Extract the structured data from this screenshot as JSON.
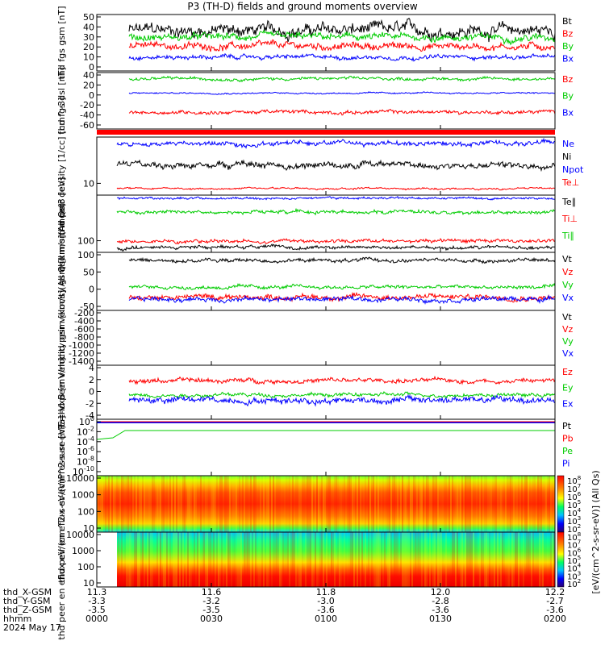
{
  "title": "P3 (TH-D) fields and ground moments overview",
  "date_label": "2024 May 17",
  "footer": {
    "row_labels": [
      "thd_X-GSM",
      "thd_Y-GSM",
      "thd_Z-GSM",
      "hhmm"
    ],
    "ticks": [
      {
        "x": "11.3",
        "y": "-3.3",
        "z": "-3.5",
        "t": "0000"
      },
      {
        "x": "11.6",
        "y": "-3.2",
        "z": "-3.5",
        "t": "0030"
      },
      {
        "x": "11.8",
        "y": "-3.0",
        "z": "-3.6",
        "t": "0100"
      },
      {
        "x": "12.0",
        "y": "-2.8",
        "z": "-3.6",
        "t": "0130"
      },
      {
        "x": "12.2",
        "y": "-2.7",
        "z": "-3.6",
        "t": "0200"
      }
    ]
  },
  "colorbar": {
    "label": "[eV/(cm^2-s-sr-eV)] (All Qs)",
    "ticks": [
      "10^8",
      "10^7",
      "10^6",
      "10^5",
      "10^4",
      "10^3",
      "10^2"
    ]
  },
  "chart_data": [
    {
      "type": "line",
      "ylabel": "thd fgs gsm [nT]",
      "yticks": [
        "50",
        "40",
        "30",
        "20",
        "10",
        "0"
      ],
      "ylim": [
        -5,
        52
      ],
      "series": [
        {
          "name": "Bt",
          "color": "#000000",
          "base": 36,
          "noise": 9
        },
        {
          "name": "Bz",
          "color": "#ff0000",
          "base": 20,
          "noise": 5
        },
        {
          "name": "By",
          "color": "#00cc00",
          "base": 29,
          "noise": 5
        },
        {
          "name": "Bx",
          "color": "#0000ff",
          "base": 9,
          "noise": 3
        }
      ]
    },
    {
      "type": "line",
      "ylabel": "thd fgs dsl [nT]",
      "yticks": [
        "40",
        "20",
        "0",
        "-20",
        "-40",
        "-60"
      ],
      "ylim": [
        -68,
        42
      ],
      "series": [
        {
          "name": "Bz",
          "color": "#ff0000",
          "base": -35,
          "noise": 5
        },
        {
          "name": "By",
          "color": "#00cc00",
          "base": 30,
          "noise": 4
        },
        {
          "name": "Bx",
          "color": "#0000ff",
          "base": 2,
          "noise": 2
        }
      ]
    },
    {
      "type": "line",
      "ylabel": "thd peir density [1/cc] [cm^-3]",
      "yticks": [
        "10"
      ],
      "ylim": [
        0,
        1
      ],
      "series": [
        {
          "name": "Ne",
          "color": "#0000ff"
        },
        {
          "name": "Ni",
          "color": "#000000"
        },
        {
          "name": "Npot",
          "color": "#0000ff"
        },
        {
          "name": "Te⊥",
          "color": "#ff0000"
        }
      ]
    },
    {
      "type": "line",
      "ylabel": "thd mom moat3 [eV]",
      "yticks": [
        "100"
      ],
      "ylim": [
        0,
        1
      ],
      "series": [
        {
          "name": "Te∥",
          "color": "#000000"
        },
        {
          "name": "Ti⊥",
          "color": "#ff0000"
        },
        {
          "name": "Ti∥",
          "color": "#00cc00"
        }
      ]
    },
    {
      "type": "line",
      "ylabel": "thd peir velocity gsm [km/s](All Qs)",
      "yticks": [
        "100",
        "50",
        "0",
        "-50"
      ],
      "ylim": [
        -80,
        100
      ],
      "series": [
        {
          "name": "Vt",
          "color": "#000000",
          "base": 75,
          "noise": 8
        },
        {
          "name": "Vz",
          "color": "#ff0000",
          "base": -38,
          "noise": 12
        },
        {
          "name": "Vy",
          "color": "#00cc00",
          "base": -8,
          "noise": 8
        },
        {
          "name": "Vx",
          "color": "#0000ff",
          "base": -45,
          "noise": 10
        }
      ]
    },
    {
      "type": "line",
      "ylabel": "thd peer velocity gsm [km/s](All Qs)",
      "yticks": [
        "-200",
        "-400",
        "-600",
        "-800",
        "-1000",
        "-1200",
        "-1400"
      ],
      "ylim": [
        -1450,
        -120
      ],
      "series": [
        {
          "name": "Vt",
          "color": "#000000"
        },
        {
          "name": "Vz",
          "color": "#ff0000"
        },
        {
          "name": "Vy",
          "color": "#00cc00"
        },
        {
          "name": "Vx",
          "color": "#0000ff"
        }
      ]
    },
    {
      "type": "line",
      "ylabel": "E=-VxB [mV/m]",
      "yticks": [
        "4",
        "2",
        "0",
        "-2",
        "-4"
      ],
      "ylim": [
        -4.2,
        4.2
      ],
      "series": [
        {
          "name": "Ez",
          "color": "#ff0000",
          "base": 1.8,
          "noise": 0.5
        },
        {
          "name": "Ey",
          "color": "#00cc00",
          "base": -0.4,
          "noise": 0.4
        },
        {
          "name": "Ex",
          "color": "#0000ff",
          "base": -1.2,
          "noise": 0.7
        }
      ]
    },
    {
      "type": "line",
      "ylabel": "Pressure [nPa]",
      "yticks": [
        "10^0",
        "10^-2",
        "10^-4",
        "10^-6",
        "10^-8",
        "10^-10"
      ],
      "ylim": [
        -11,
        1
      ],
      "series": [
        {
          "name": "Pt",
          "color": "#000000"
        },
        {
          "name": "Pb",
          "color": "#ff0000"
        },
        {
          "name": "Pe",
          "color": "#00cc00"
        },
        {
          "name": "Pi",
          "color": "#0000ff"
        }
      ]
    },
    {
      "type": "heatmap",
      "ylabel": "thd peir en eflux eV/(cm^2-s-sr-eV)",
      "yticks": [
        "10000",
        "1000",
        "100",
        "10"
      ]
    },
    {
      "type": "heatmap",
      "ylabel": "thd peer en eflux eV/(cm^2-s-sr-eV)",
      "yticks": [
        "10000",
        "1000",
        "100",
        "10"
      ]
    }
  ]
}
